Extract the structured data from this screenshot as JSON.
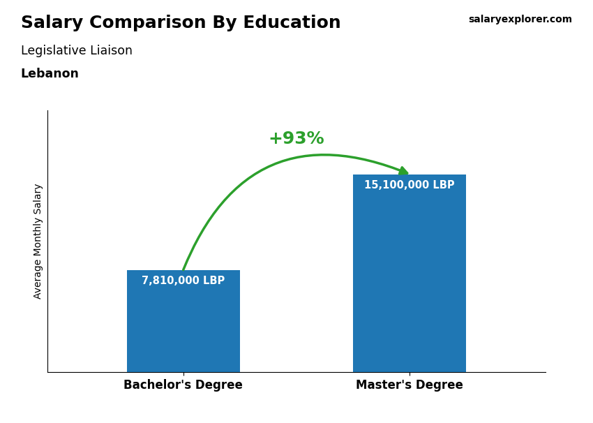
{
  "chart_data": {
    "type": "bar",
    "title": "Salary Comparison By Education",
    "subtitle": "Legislative Liaison",
    "ylabel": "Average Monthly Salary",
    "categories": [
      "Bachelor's Degree",
      "Master's Degree"
    ],
    "values": [
      7810000,
      15100000
    ],
    "value_labels": [
      "7,810,000 LBP",
      "15,100,000 LBP"
    ],
    "data_labels": true,
    "ylim": [
      0,
      20000000
    ],
    "tick_labels": "x",
    "grid": false,
    "annotations": [
      {
        "text": "+93%",
        "arrow": [
          0,
          1
        ]
      },
      {
        "text": "Lebanon"
      },
      {
        "text": "salaryexplorer.com"
      }
    ]
  }
}
